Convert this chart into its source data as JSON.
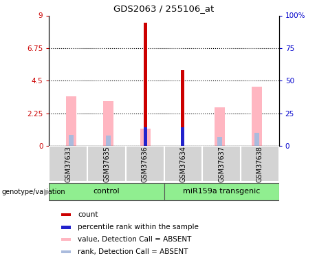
{
  "title": "GDS2063 / 255106_at",
  "samples": [
    "GSM37633",
    "GSM37635",
    "GSM37636",
    "GSM37634",
    "GSM37637",
    "GSM37638"
  ],
  "group_labels": [
    "control",
    "miR159a transgenic"
  ],
  "ylim_left": [
    0,
    9
  ],
  "ylim_right": [
    0,
    100
  ],
  "yticks_left": [
    0,
    2.25,
    4.5,
    6.75,
    9
  ],
  "yticks_right": [
    0,
    25,
    50,
    75,
    100
  ],
  "ytick_labels_left": [
    "0",
    "2.25",
    "4.5",
    "6.75",
    "9"
  ],
  "ytick_labels_right": [
    "0",
    "25",
    "50",
    "75",
    "100%"
  ],
  "count_bars": [
    0,
    0,
    8.5,
    5.2,
    0,
    0
  ],
  "percentile_bars": [
    0,
    0,
    1.3,
    1.3,
    0,
    0
  ],
  "value_absent_bars": [
    3.4,
    3.1,
    1.2,
    0,
    2.65,
    4.1
  ],
  "rank_absent_bars": [
    0.75,
    0.7,
    0,
    0,
    0.6,
    0.9
  ],
  "count_color": "#cc0000",
  "percentile_color": "#2222cc",
  "value_absent_color": "#ffb6c1",
  "rank_absent_color": "#aabbdd",
  "green_color": "#90ee90",
  "gray_color": "#d3d3d3",
  "xlabel_color": "#cc0000",
  "ylabel_right_color": "#0000cc",
  "legend_items": [
    {
      "label": "count",
      "color": "#cc0000"
    },
    {
      "label": "percentile rank within the sample",
      "color": "#2222cc"
    },
    {
      "label": "value, Detection Call = ABSENT",
      "color": "#ffb6c1"
    },
    {
      "label": "rank, Detection Call = ABSENT",
      "color": "#aabbdd"
    }
  ]
}
